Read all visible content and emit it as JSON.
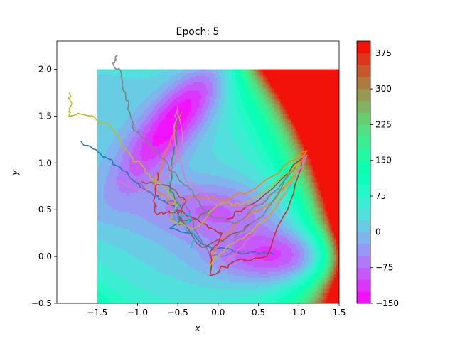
{
  "chart_data": {
    "type": "contour_with_trajectories",
    "title": "Epoch: 5",
    "xlabel": "x",
    "ylabel": "y",
    "xlim": [
      -2.0,
      1.5
    ],
    "ylim": [
      -0.5,
      2.3
    ],
    "contour_domain": {
      "x": [
        -1.5,
        1.5
      ],
      "y": [
        -0.5,
        2.0
      ]
    },
    "x_ticks": [
      -1.5,
      -1.0,
      -0.5,
      0.0,
      0.5,
      1.0,
      1.5
    ],
    "x_tick_labels": [
      "−1.5",
      "−1.0",
      "−0.5",
      "0.0",
      "0.5",
      "1.0",
      "1.5"
    ],
    "y_ticks": [
      -0.5,
      0.0,
      0.5,
      1.0,
      1.5,
      2.0
    ],
    "y_tick_labels": [
      "−0.5",
      "0.0",
      "0.5",
      "1.0",
      "1.5",
      "2.0"
    ],
    "colorbar": {
      "range": [
        -150,
        400
      ],
      "ticks": [
        -150,
        -75,
        0,
        75,
        150,
        225,
        300,
        375
      ],
      "tick_labels": [
        "−150",
        "−75",
        "0",
        "75",
        "150",
        "225",
        "300",
        "375"
      ],
      "colormap": "rainbow"
    },
    "minima": [
      {
        "x": -0.56,
        "y": 1.44,
        "value": -146.7
      },
      {
        "x": 0.62,
        "y": 0.03,
        "value": -108.2
      },
      {
        "x": -0.05,
        "y": 0.47,
        "value": -80.8
      }
    ],
    "series": [
      {
        "color": "#1f77b4",
        "points": [
          [
            -1.7,
            1.22
          ],
          [
            -1.55,
            1.15
          ],
          [
            -1.38,
            1.05
          ],
          [
            -1.1,
            0.85
          ],
          [
            -0.8,
            0.65
          ],
          [
            -0.55,
            0.55
          ],
          [
            -0.45,
            0.4
          ],
          [
            -0.6,
            0.3
          ],
          [
            -0.35,
            0.25
          ],
          [
            -0.1,
            0.1
          ],
          [
            0.2,
            0.05
          ],
          [
            0.45,
            0.05
          ],
          [
            0.7,
            0.02
          ]
        ]
      },
      {
        "color": "#ff7f0e",
        "points": [
          [
            -0.45,
            1.55
          ],
          [
            -0.6,
            1.2
          ],
          [
            -0.8,
            0.75
          ],
          [
            -0.6,
            0.55
          ],
          [
            -0.3,
            0.65
          ],
          [
            0.0,
            0.6
          ],
          [
            0.4,
            0.7
          ],
          [
            0.8,
            0.95
          ],
          [
            1.1,
            1.13
          ],
          [
            0.7,
            0.6
          ],
          [
            0.3,
            0.4
          ],
          [
            0.0,
            0.15
          ],
          [
            -0.1,
            -0.1
          ]
        ]
      },
      {
        "color": "#2ca02c",
        "points": [
          [
            -0.5,
            1.5
          ],
          [
            -0.55,
            1.1
          ],
          [
            -0.6,
            0.7
          ],
          [
            -0.45,
            0.5
          ],
          [
            -0.5,
            0.35
          ],
          [
            -0.3,
            0.4
          ],
          [
            -0.1,
            0.5
          ]
        ]
      },
      {
        "color": "#d62728",
        "points": [
          [
            -0.75,
            0.9
          ],
          [
            -0.8,
            0.6
          ],
          [
            -0.75,
            0.45
          ],
          [
            -0.5,
            0.5
          ],
          [
            -0.2,
            0.35
          ],
          [
            0.05,
            0.25
          ],
          [
            -0.1,
            0.05
          ],
          [
            -0.1,
            -0.2
          ],
          [
            0.2,
            -0.05
          ],
          [
            0.6,
            0.0
          ],
          [
            0.9,
            0.6
          ],
          [
            1.05,
            1.05
          ],
          [
            0.5,
            0.6
          ],
          [
            0.1,
            0.4
          ]
        ]
      },
      {
        "color": "#9467bd",
        "points": [
          [
            -1.1,
            0.85
          ],
          [
            -0.7,
            0.6
          ],
          [
            -0.4,
            0.55
          ],
          [
            -0.3,
            0.3
          ],
          [
            -0.1,
            0.0
          ],
          [
            0.3,
            0.05
          ],
          [
            0.6,
            0.03
          ]
        ]
      },
      {
        "color": "#8c564b",
        "points": [
          [
            -0.95,
            0.8
          ],
          [
            -0.6,
            0.75
          ],
          [
            -0.4,
            0.6
          ],
          [
            -0.5,
            0.45
          ],
          [
            -0.2,
            0.1
          ],
          [
            0.1,
            0.2
          ],
          [
            0.4,
            0.35
          ]
        ]
      },
      {
        "color": "#e377c2",
        "points": [
          [
            -1.3,
            0.8
          ],
          [
            -0.9,
            0.7
          ],
          [
            -0.6,
            0.9
          ],
          [
            -0.45,
            1.2
          ],
          [
            -0.5,
            1.6
          ],
          [
            -0.55,
            1.3
          ],
          [
            -0.4,
            0.8
          ],
          [
            0.0,
            0.55
          ],
          [
            0.5,
            0.55
          ],
          [
            0.9,
            0.8
          ],
          [
            1.1,
            1.08
          ],
          [
            0.7,
            0.5
          ],
          [
            0.3,
            0.1
          ],
          [
            0.0,
            -0.1
          ]
        ]
      },
      {
        "color": "#7f7f7f",
        "points": [
          [
            -1.25,
            2.15
          ],
          [
            -1.3,
            2.05
          ],
          [
            -1.2,
            1.95
          ],
          [
            -1.15,
            1.75
          ],
          [
            -1.1,
            1.55
          ],
          [
            -1.05,
            1.35
          ],
          [
            -0.75,
            1.1
          ],
          [
            -0.5,
            0.85
          ],
          [
            -0.3,
            0.65
          ],
          [
            -0.1,
            0.45
          ],
          [
            0.2,
            0.35
          ],
          [
            0.6,
            0.6
          ],
          [
            1.0,
            1.0
          ],
          [
            0.6,
            0.5
          ],
          [
            0.2,
            0.2
          ]
        ]
      },
      {
        "color": "#bcbd22",
        "points": [
          [
            -1.85,
            1.75
          ],
          [
            -1.83,
            1.6
          ],
          [
            -1.85,
            1.5
          ],
          [
            -1.7,
            1.52
          ],
          [
            -1.55,
            1.5
          ],
          [
            -1.3,
            1.35
          ],
          [
            -1.1,
            1.1
          ],
          [
            -0.9,
            0.9
          ],
          [
            -0.65,
            0.72
          ],
          [
            -0.5,
            0.55
          ],
          [
            -0.6,
            0.4
          ],
          [
            -0.3,
            0.3
          ],
          [
            0.0,
            0.55
          ],
          [
            0.35,
            0.58
          ],
          [
            0.65,
            0.75
          ],
          [
            1.0,
            1.0
          ],
          [
            0.7,
            0.5
          ],
          [
            0.4,
            0.25
          ],
          [
            0.1,
            0.1
          ],
          [
            -0.1,
            -0.1
          ]
        ]
      },
      {
        "color": "#17becf",
        "points": [
          [
            -0.5,
            0.6
          ],
          [
            -0.55,
            0.4
          ],
          [
            -0.35,
            0.45
          ],
          [
            -0.4,
            0.3
          ],
          [
            -0.25,
            0.2
          ],
          [
            -0.35,
            0.1
          ]
        ]
      }
    ]
  }
}
